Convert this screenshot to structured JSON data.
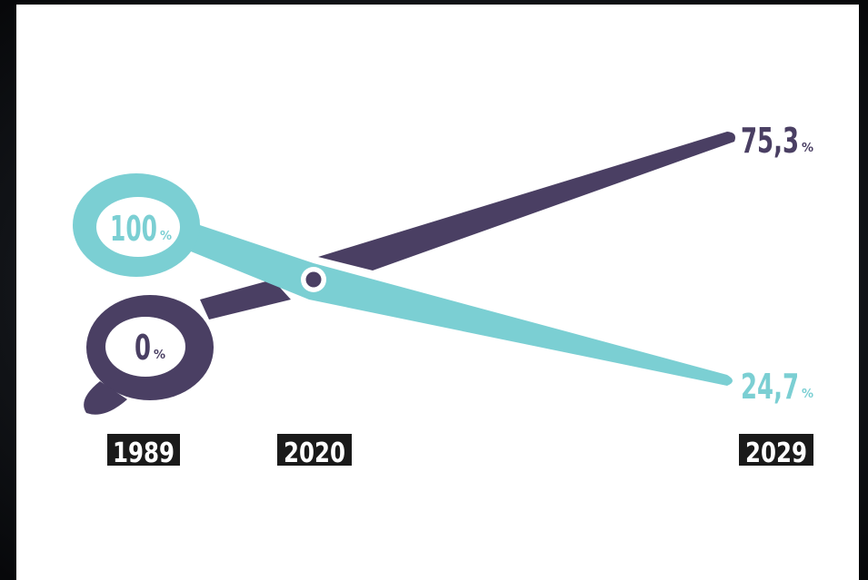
{
  "years": [
    "1989",
    "2020",
    "2029"
  ],
  "blades": [
    {
      "start": "100",
      "end": "24,7",
      "unit": "%",
      "color": "#7bcfd3"
    },
    {
      "start": "0",
      "end": "75,3",
      "unit": "%",
      "color": "#4a3f63"
    }
  ]
}
